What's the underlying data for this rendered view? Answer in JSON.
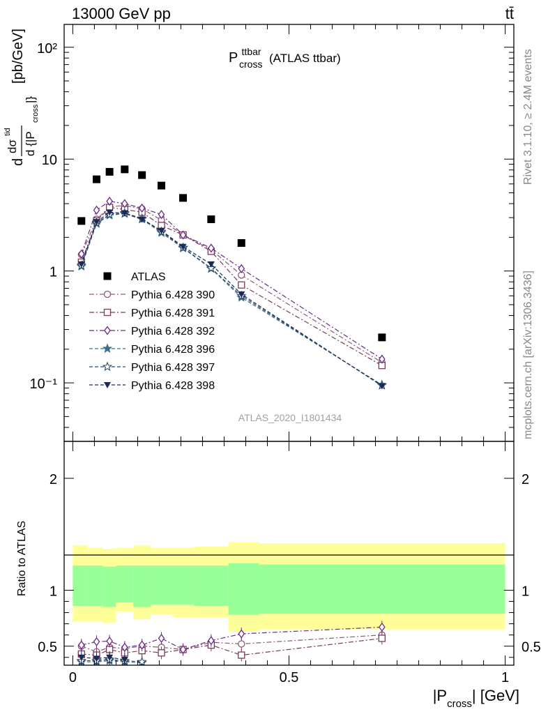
{
  "header": {
    "energy": "13000 GeV pp",
    "process": "tt̄"
  },
  "side": {
    "rivet": "Rivet 3.1.10, ≥ 2.4M events",
    "site": "mcplots.cern.ch [arXiv:1306.3436]"
  },
  "chart_data": [
    {
      "type": "scatter",
      "title_main": "P",
      "title_sup": "ttbar",
      "title_sub": "cross",
      "title_suffix": "(ATLAS ttbar)",
      "analysis": "ATLAS_2020_I1801434",
      "ylabel": "d²σ^{tid} / d {|P_cross|} [pb/GeV]",
      "yscale": "log",
      "ylim": [
        0.03,
        160
      ],
      "xlim": [
        -0.02,
        1.02
      ],
      "yticks": [
        "10²",
        "10",
        "1",
        "10⁻¹"
      ],
      "legend_position": "lower-left",
      "x": [
        0.02,
        0.055,
        0.085,
        0.12,
        0.16,
        0.205,
        0.255,
        0.32,
        0.39,
        0.715
      ],
      "series": [
        {
          "name": "ATLAS",
          "color": "#000000",
          "marker": "square-filled",
          "line": "none",
          "values": [
            2.8,
            6.6,
            7.7,
            8.1,
            7.2,
            5.8,
            4.5,
            2.9,
            1.78,
            0.255
          ]
        },
        {
          "name": "Pythia 6.428 390",
          "color": "#8a5a78",
          "marker": "circle-open",
          "line": "dashdot",
          "values": [
            1.4,
            2.9,
            3.75,
            3.85,
            3.6,
            2.85,
            2.1,
            1.55,
            0.92,
            0.152
          ]
        },
        {
          "name": "Pythia 6.428 391",
          "color": "#7a3a55",
          "marker": "square-open",
          "line": "dashdot",
          "values": [
            1.2,
            2.8,
            3.7,
            3.55,
            3.35,
            2.55,
            2.1,
            1.5,
            0.75,
            0.143
          ]
        },
        {
          "name": "Pythia 6.428 392",
          "color": "#6a2a8a",
          "marker": "diamond-open",
          "line": "dashdot",
          "values": [
            1.42,
            3.5,
            4.2,
            4.0,
            3.65,
            3.2,
            2.1,
            1.6,
            1.05,
            0.163
          ]
        },
        {
          "name": "Pythia 6.428 396",
          "color": "#3d6e85",
          "marker": "star-filled",
          "line": "dashed",
          "values": [
            1.1,
            2.65,
            3.15,
            3.25,
            2.9,
            2.2,
            1.6,
            1.05,
            0.58,
            0.096
          ]
        },
        {
          "name": "Pythia 6.428 397",
          "color": "#2c4a6a",
          "marker": "star-open",
          "line": "dashed",
          "values": [
            1.12,
            2.7,
            3.2,
            3.3,
            2.95,
            2.25,
            1.62,
            1.06,
            0.6,
            0.095
          ]
        },
        {
          "name": "Pythia 6.428 398",
          "color": "#1a2a55",
          "marker": "triangle-down-filled",
          "line": "dashed",
          "values": [
            1.15,
            2.75,
            3.35,
            3.3,
            2.9,
            2.3,
            1.65,
            1.15,
            0.62,
            0.094
          ]
        }
      ]
    },
    {
      "type": "scatter",
      "ylabel": "Ratio to ATLAS",
      "xlabel_pre": "|P",
      "xlabel_sub": "cross",
      "xlabel_post": "| [GeV]",
      "ylim": [
        0.33,
        2.33
      ],
      "xlim": [
        -0.02,
        1.02
      ],
      "xticks": [
        "0",
        "0.5",
        "1"
      ],
      "yticks": [
        "2",
        "1",
        "0.5"
      ],
      "uncertainty_bins": [
        0.0,
        0.035,
        0.07,
        0.1,
        0.14,
        0.18,
        0.23,
        0.28,
        0.36,
        0.43,
        1.0
      ],
      "band_outer": [
        [
          0.72,
          1.4
        ],
        [
          0.72,
          1.38
        ],
        [
          0.71,
          1.37
        ],
        [
          0.81,
          1.38
        ],
        [
          0.74,
          1.4
        ],
        [
          0.78,
          1.38
        ],
        [
          0.76,
          1.38
        ],
        [
          0.76,
          1.39
        ],
        [
          0.63,
          1.43
        ],
        [
          0.65,
          1.42
        ]
      ],
      "band_inner": [
        [
          0.86,
          1.22
        ],
        [
          0.86,
          1.22
        ],
        [
          0.85,
          1.21
        ],
        [
          0.89,
          1.22
        ],
        [
          0.85,
          1.22
        ],
        [
          0.87,
          1.22
        ],
        [
          0.87,
          1.22
        ],
        [
          0.86,
          1.22
        ],
        [
          0.78,
          1.24
        ],
        [
          0.79,
          1.23
        ]
      ],
      "x": [
        0.02,
        0.055,
        0.085,
        0.12,
        0.16,
        0.205,
        0.255,
        0.32,
        0.39,
        0.715
      ],
      "series": [
        {
          "name": "Pythia 6.428 390",
          "values": [
            0.5,
            0.45,
            0.49,
            0.48,
            0.5,
            0.49,
            0.47,
            0.535,
            0.52,
            0.6
          ]
        },
        {
          "name": "Pythia 6.428 391",
          "values": [
            0.43,
            0.42,
            0.47,
            0.44,
            0.46,
            0.44,
            0.47,
            0.51,
            0.42,
            0.57
          ]
        },
        {
          "name": "Pythia 6.428 392",
          "values": [
            0.51,
            0.54,
            0.545,
            0.49,
            0.51,
            0.57,
            0.47,
            0.55,
            0.61,
            0.67
          ]
        },
        {
          "name": "Pythia 6.428 396",
          "values": [
            0.36,
            0.36,
            0.37,
            0.36,
            0.35,
            null,
            null,
            null,
            null,
            null
          ]
        },
        {
          "name": "Pythia 6.428 397",
          "values": [
            0.37,
            0.37,
            0.38,
            0.37,
            0.36,
            null,
            null,
            null,
            null,
            null
          ]
        },
        {
          "name": "Pythia 6.428 398",
          "values": [
            0.4,
            0.39,
            0.4,
            0.38,
            null,
            null,
            null,
            null,
            null,
            null
          ]
        }
      ]
    }
  ]
}
